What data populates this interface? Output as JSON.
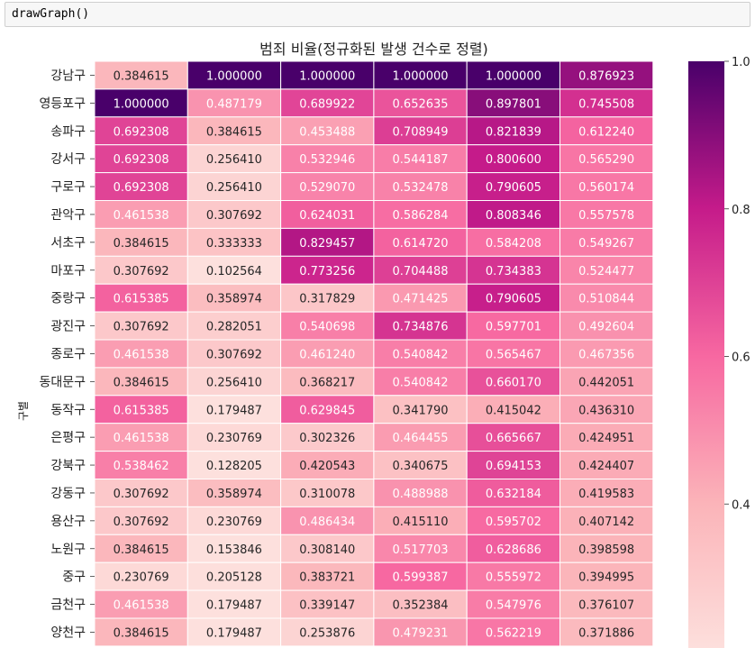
{
  "notebook": {
    "code": "drawGraph()"
  },
  "chart_data": {
    "type": "heatmap",
    "title": "범죄 비율(정규화된 발생 건수로 정렬)",
    "ylabel": "구별",
    "colormap": "RdPu",
    "colorbar": {
      "ticks": [
        1.0,
        0.8,
        0.6,
        0.4
      ],
      "tick_labels": [
        "1.0",
        "0.8",
        "0.6",
        "0.4"
      ],
      "range": [
        0.2,
        1.0
      ]
    },
    "rows": [
      "강남구",
      "영등포구",
      "송파구",
      "강서구",
      "구로구",
      "관악구",
      "서초구",
      "마포구",
      "중랑구",
      "광진구",
      "종로구",
      "동대문구",
      "동작구",
      "은평구",
      "강북구",
      "강동구",
      "용산구",
      "노원구",
      "중구",
      "금천구",
      "양천구"
    ],
    "values": [
      [
        0.384615,
        1.0,
        1.0,
        1.0,
        1.0,
        0.876923
      ],
      [
        1.0,
        0.487179,
        0.689922,
        0.652635,
        0.897801,
        0.745508
      ],
      [
        0.692308,
        0.384615,
        0.453488,
        0.708949,
        0.821839,
        0.61224
      ],
      [
        0.692308,
        0.25641,
        0.532946,
        0.544187,
        0.8006,
        0.56529
      ],
      [
        0.692308,
        0.25641,
        0.52907,
        0.532478,
        0.790605,
        0.560174
      ],
      [
        0.461538,
        0.307692,
        0.624031,
        0.586284,
        0.808346,
        0.557578
      ],
      [
        0.384615,
        0.333333,
        0.829457,
        0.61472,
        0.584208,
        0.549267
      ],
      [
        0.307692,
        0.102564,
        0.773256,
        0.704488,
        0.734383,
        0.524477
      ],
      [
        0.615385,
        0.358974,
        0.317829,
        0.471425,
        0.790605,
        0.510844
      ],
      [
        0.307692,
        0.282051,
        0.540698,
        0.734876,
        0.597701,
        0.492604
      ],
      [
        0.461538,
        0.307692,
        0.46124,
        0.540842,
        0.565467,
        0.467356
      ],
      [
        0.384615,
        0.25641,
        0.368217,
        0.540842,
        0.66017,
        0.442051
      ],
      [
        0.615385,
        0.179487,
        0.629845,
        0.34179,
        0.415042,
        0.43631
      ],
      [
        0.461538,
        0.230769,
        0.302326,
        0.464455,
        0.665667,
        0.424951
      ],
      [
        0.538462,
        0.128205,
        0.420543,
        0.340675,
        0.694153,
        0.424407
      ],
      [
        0.307692,
        0.358974,
        0.310078,
        0.488988,
        0.632184,
        0.419583
      ],
      [
        0.307692,
        0.230769,
        0.486434,
        0.41511,
        0.595702,
        0.407142
      ],
      [
        0.384615,
        0.153846,
        0.30814,
        0.517703,
        0.628686,
        0.398598
      ],
      [
        0.230769,
        0.205128,
        0.383721,
        0.599387,
        0.555972,
        0.394995
      ],
      [
        0.461538,
        0.179487,
        0.339147,
        0.352384,
        0.547976,
        0.376107
      ],
      [
        0.384615,
        0.179487,
        0.253876,
        0.479231,
        0.562219,
        0.371886
      ]
    ]
  }
}
